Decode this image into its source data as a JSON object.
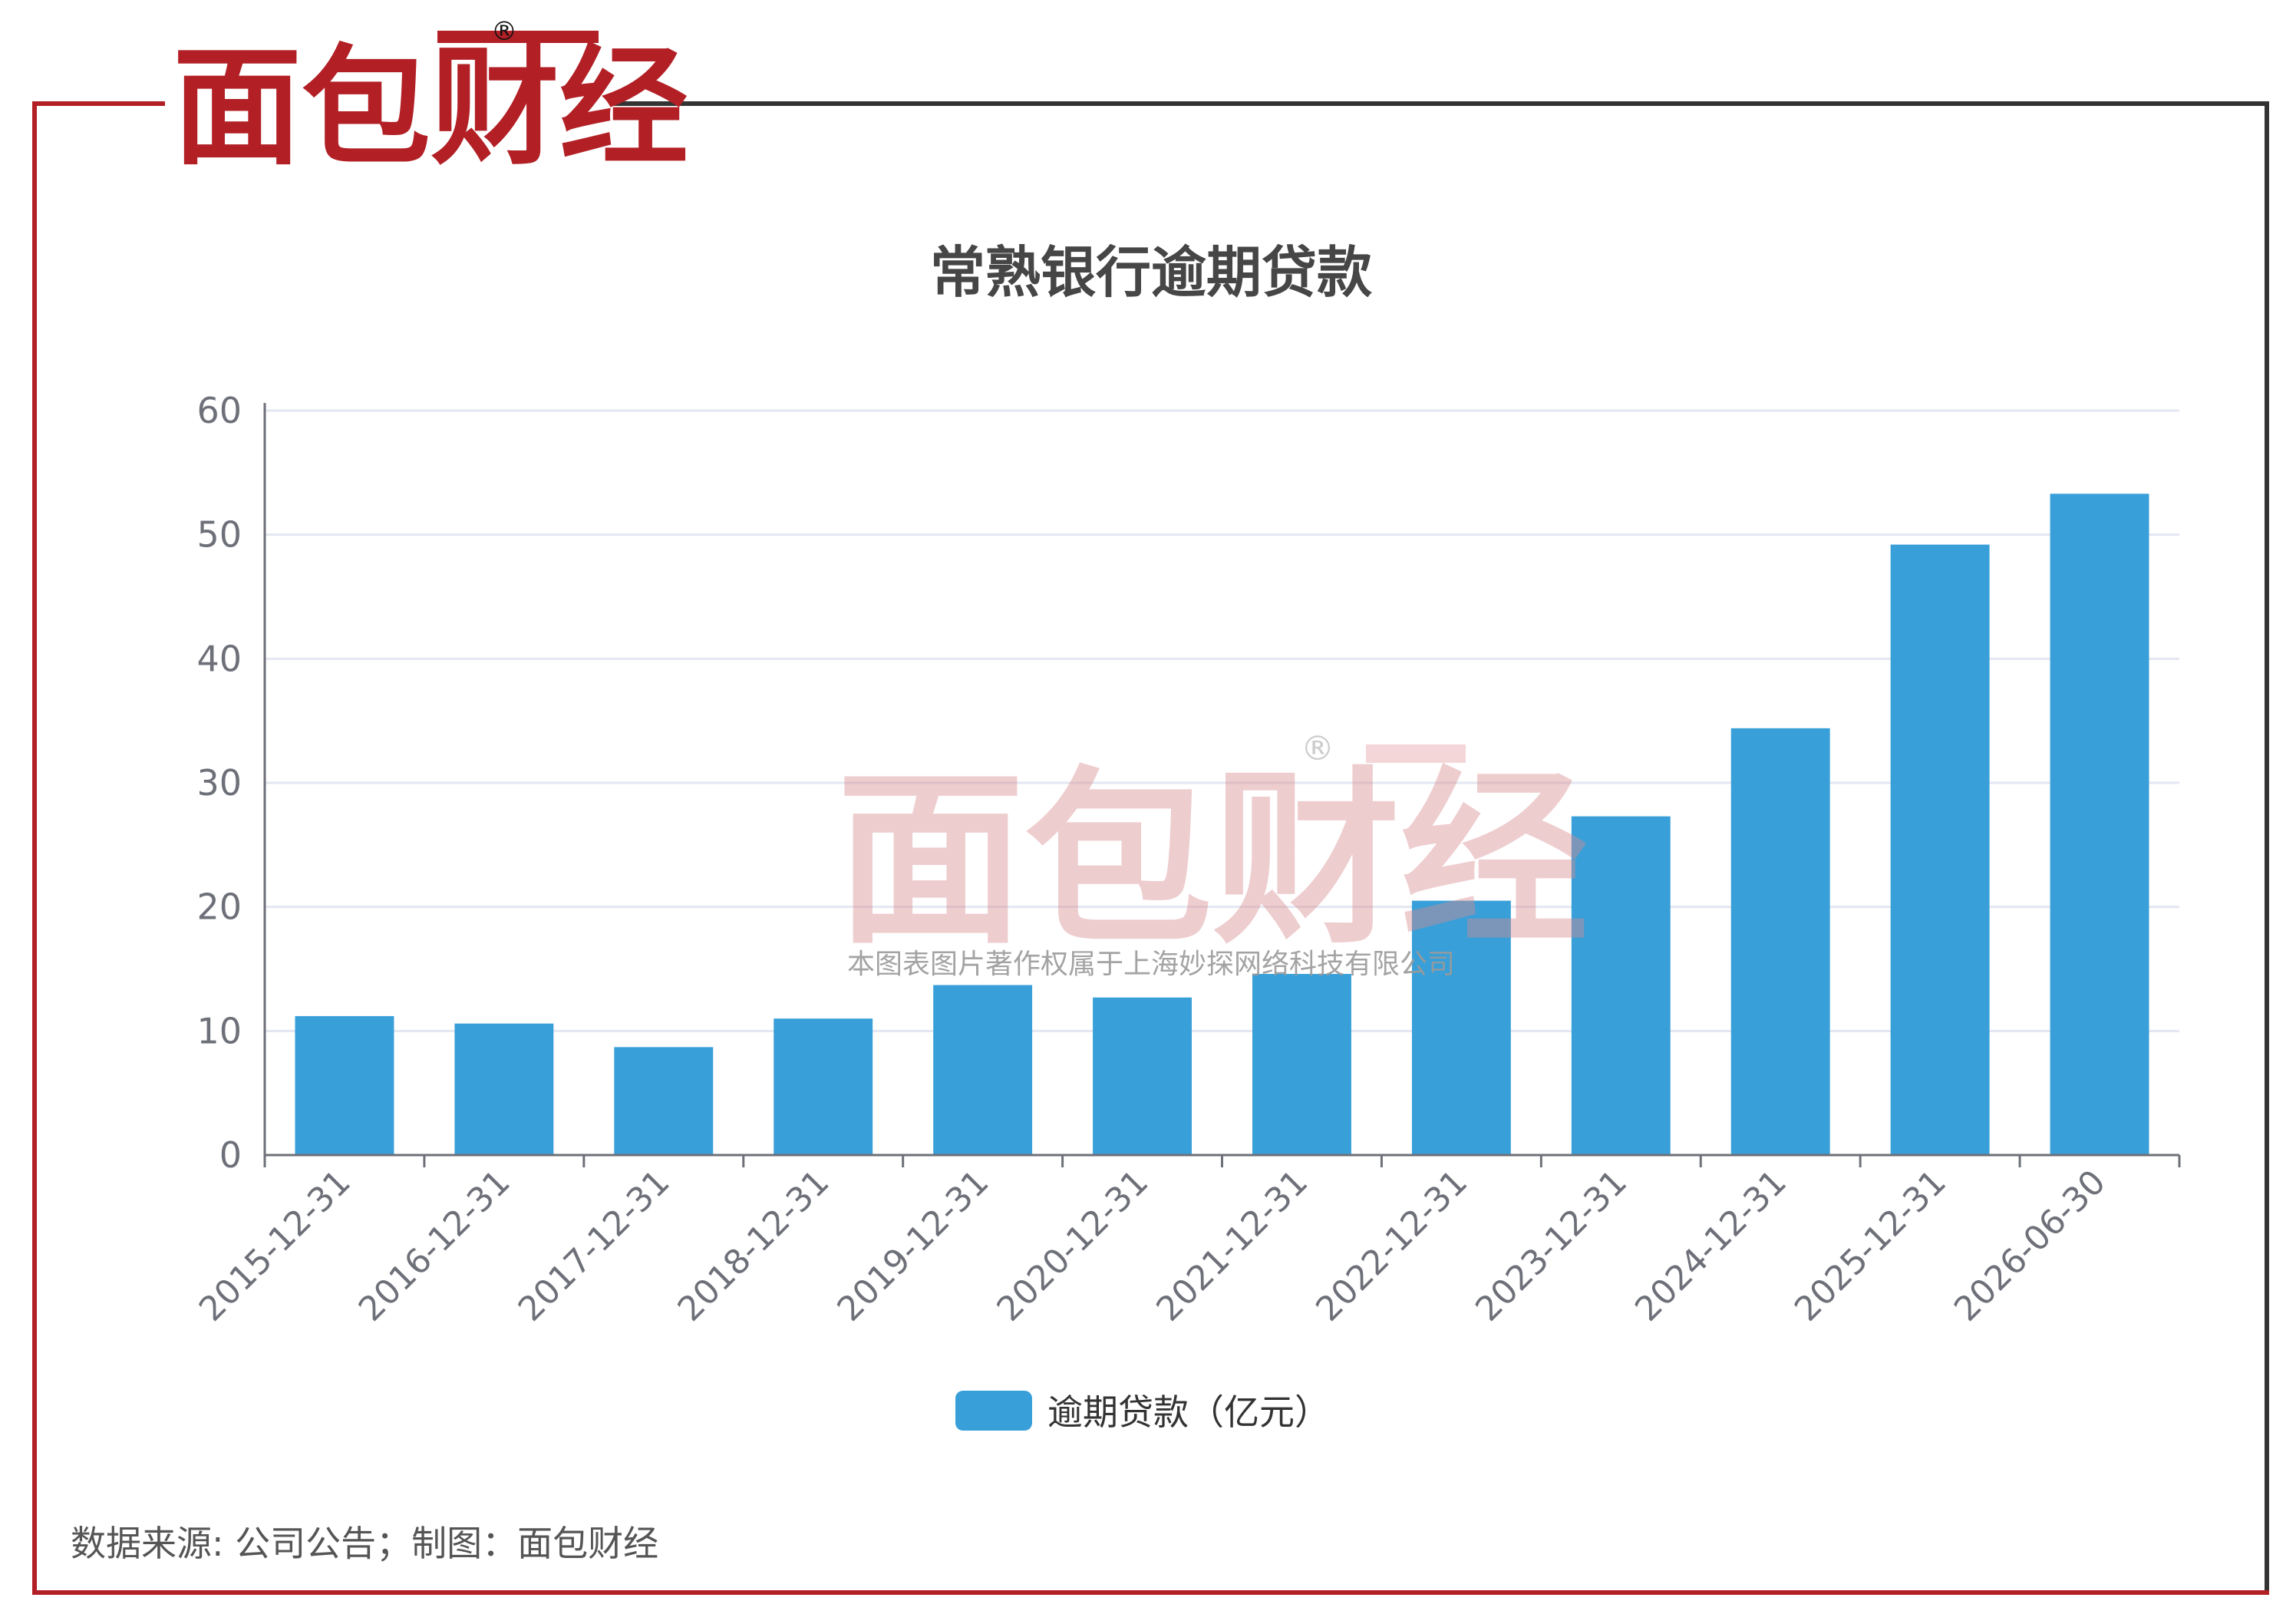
{
  "logo": {
    "text": "面包财经",
    "registered_mark": "®",
    "red": "#B22026",
    "black": "#111111"
  },
  "watermark": {
    "logo_text": "面包财经",
    "registered_mark": "®",
    "caption": "本图表图片著作权属于上海妙探网络科技有限公司"
  },
  "footer": {
    "source": "数据来源: 公司公告；制图：面包财经"
  },
  "colors": {
    "frame_red": "#B22026",
    "frame_dark": "#333333",
    "bar": "#389FD9",
    "grid": "#E3E7F0",
    "axis": "#6E7079",
    "tick_text": "#6E7079",
    "title_text": "#464646"
  },
  "chart_data": {
    "type": "bar",
    "title": "常熟银行逾期贷款",
    "xlabel": "",
    "ylabel": "",
    "categories": [
      "2015-12-31",
      "2016-12-31",
      "2017-12-31",
      "2018-12-31",
      "2019-12-31",
      "2020-12-31",
      "2021-12-31",
      "2022-12-31",
      "2023-12-31",
      "2024-12-31",
      "2025-12-31",
      "2026-06-30"
    ],
    "series": [
      {
        "name": "逾期贷款（亿元）",
        "values": [
          11.2,
          10.6,
          8.7,
          11.0,
          13.7,
          12.7,
          14.6,
          20.5,
          27.3,
          34.4,
          49.2,
          53.3
        ]
      }
    ],
    "ylim": [
      0,
      60
    ],
    "yticks": [
      0,
      10,
      20,
      30,
      40,
      50,
      60
    ],
    "grid": true,
    "legend_position": "bottom-center"
  }
}
